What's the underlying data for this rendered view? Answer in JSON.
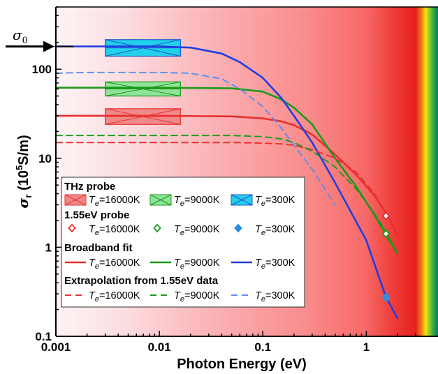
{
  "chart_data": {
    "type": "line",
    "xlabel": "Photon Energy (eV)",
    "ylabel_main": "σ",
    "ylabel_sub": "r",
    "ylabel_unit_pre": " (10",
    "ylabel_unit_exp": "5",
    "ylabel_unit_post": "S/m)",
    "xscale": "log",
    "yscale": "log",
    "xlim": [
      0.001,
      3
    ],
    "ylim": [
      0.1,
      500
    ],
    "x_ticks": [
      {
        "value": 0.001,
        "label": "0.001"
      },
      {
        "value": 0.01,
        "label": "0.01"
      },
      {
        "value": 0.1,
        "label": "0.1"
      },
      {
        "value": 1,
        "label": "1"
      }
    ],
    "y_ticks": [
      {
        "value": 0.1,
        "label": "0.1"
      },
      {
        "value": 1,
        "label": "1"
      },
      {
        "value": 10,
        "label": "10"
      },
      {
        "value": 100,
        "label": "100"
      }
    ],
    "sigma0": {
      "label": "σ",
      "sub": "0",
      "value": 180
    },
    "thz_probe": [
      {
        "temp": 16000,
        "color": "#e8302f",
        "fill": "#f08a8a",
        "x_range": [
          0.003,
          0.016
        ],
        "y_range": [
          24,
          36
        ]
      },
      {
        "temp": 9000,
        "color": "#1a9a1a",
        "fill": "#8fe39a",
        "x_range": [
          0.003,
          0.016
        ],
        "y_range": [
          50,
          72
        ]
      },
      {
        "temp": 300,
        "color": "#2255cc",
        "fill": "#22d0ea",
        "x_range": [
          0.003,
          0.016
        ],
        "y_range": [
          140,
          215
        ]
      }
    ],
    "probe_155eV": [
      {
        "temp": 16000,
        "color": "#e8302f",
        "x": 1.55,
        "y": 2.25,
        "err": 0.15
      },
      {
        "temp": 9000,
        "color": "#1a9a1a",
        "x": 1.55,
        "y": 1.42,
        "err": 0.07
      },
      {
        "temp": 300,
        "color": "#2a8fe0",
        "x": 1.55,
        "y": 0.275,
        "err": 0.02
      }
    ],
    "series": [
      {
        "name": "Broadband fit 16000K",
        "style": "solid",
        "color": "#e8302f",
        "x": [
          0.001,
          0.01,
          0.05,
          0.1,
          0.15,
          0.2,
          0.3,
          0.5,
          0.8,
          1.2,
          1.6,
          2.0
        ],
        "y": [
          30,
          30,
          29.5,
          28,
          26,
          23.5,
          18.5,
          11,
          6.5,
          3.8,
          2.3,
          1.4
        ]
      },
      {
        "name": "Broadband fit 9000K",
        "style": "solid",
        "color": "#1a9a1a",
        "x": [
          0.001,
          0.01,
          0.05,
          0.1,
          0.15,
          0.2,
          0.3,
          0.5,
          0.8,
          1.2,
          1.6,
          2.0
        ],
        "y": [
          62,
          62,
          61,
          56,
          46,
          37,
          24,
          10,
          4.8,
          2.3,
          1.3,
          0.85
        ]
      },
      {
        "name": "Broadband fit 300K",
        "style": "solid",
        "color": "#1f3fe0",
        "x": [
          0.001,
          0.002,
          0.01,
          0.02,
          0.04,
          0.06,
          0.1,
          0.15,
          0.2,
          0.3,
          0.5,
          1.0,
          1.55,
          2.0
        ],
        "y": [
          180,
          180,
          180,
          175,
          150,
          120,
          80,
          48,
          30,
          15,
          5.3,
          1.2,
          0.275,
          0.16
        ]
      },
      {
        "name": "Extrapolation 16000K",
        "style": "dashed",
        "color": "#e8302f",
        "x": [
          0.001,
          0.01,
          0.05,
          0.1,
          0.15,
          0.2,
          0.3,
          0.5,
          0.8,
          1.2,
          1.6,
          2.0
        ],
        "y": [
          15,
          15,
          15,
          14.8,
          14.5,
          14,
          12.5,
          10,
          7,
          4,
          2.3,
          1.3
        ]
      },
      {
        "name": "Extrapolation 9000K",
        "style": "dashed",
        "color": "#1a9a1a",
        "x": [
          0.001,
          0.01,
          0.05,
          0.1,
          0.15,
          0.2,
          0.3,
          0.5,
          0.8,
          1.2,
          1.6,
          2.0
        ],
        "y": [
          18,
          18,
          18,
          17.5,
          16.5,
          15,
          12,
          8,
          4.5,
          2.4,
          1.42,
          0.85
        ]
      },
      {
        "name": "Extrapolation 300K",
        "style": "dashed",
        "color": "#5a8ef0",
        "x": [
          0.001,
          0.002,
          0.01,
          0.02,
          0.04,
          0.06,
          0.1,
          0.15,
          0.2,
          0.3,
          0.5
        ],
        "y": [
          90,
          92,
          92,
          90,
          78,
          60,
          38,
          22,
          14,
          7.5,
          3
        ]
      }
    ],
    "legend": {
      "placement": "bottom-left",
      "thz_title": "THz probe",
      "probe_title": "1.55eV probe",
      "fit_title": "Broadband fit",
      "extrap_title": "Extrapolation from 1.55eV data",
      "t_symbol": "T",
      "t_sub": "e",
      "temps": [
        "=16000K",
        "=9000K",
        "=300K"
      ]
    }
  }
}
